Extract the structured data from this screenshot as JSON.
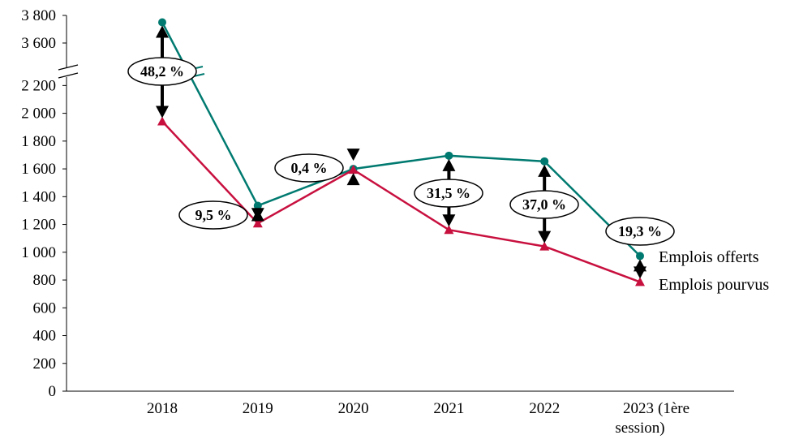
{
  "chart_data": {
    "type": "line",
    "title": "",
    "xlabel": "",
    "ylabel": "",
    "categories": [
      "2018",
      "2019",
      "2020",
      "2021",
      "2022",
      "2023 (1ère session)"
    ],
    "y_axis": {
      "broken": true,
      "lower_range": [
        0,
        2200
      ],
      "upper_range": [
        3600,
        3800
      ],
      "ticks": [
        "0",
        "200",
        "400",
        "600",
        "800",
        "1 000",
        "1 200",
        "1 400",
        "1 600",
        "1 800",
        "2 000",
        "2 200",
        "3 600",
        "3 800"
      ]
    },
    "grid": false,
    "legend_placement": "right, at line ends",
    "series": [
      {
        "name": "Emplois offerts",
        "color": "#007A70",
        "marker": "circle",
        "values": [
          3750,
          1335,
          1600,
          1695,
          1654,
          973
        ]
      },
      {
        "name": "Emplois pourvus",
        "color": "#C8103F",
        "marker": "triangle",
        "values": [
          1942,
          1208,
          1594,
          1161,
          1042,
          786
        ]
      }
    ],
    "annotations": [
      "48,2 %",
      "9,5 %",
      "0,4 %",
      "31,5 %",
      "37,0 %",
      "19,3 %"
    ]
  }
}
